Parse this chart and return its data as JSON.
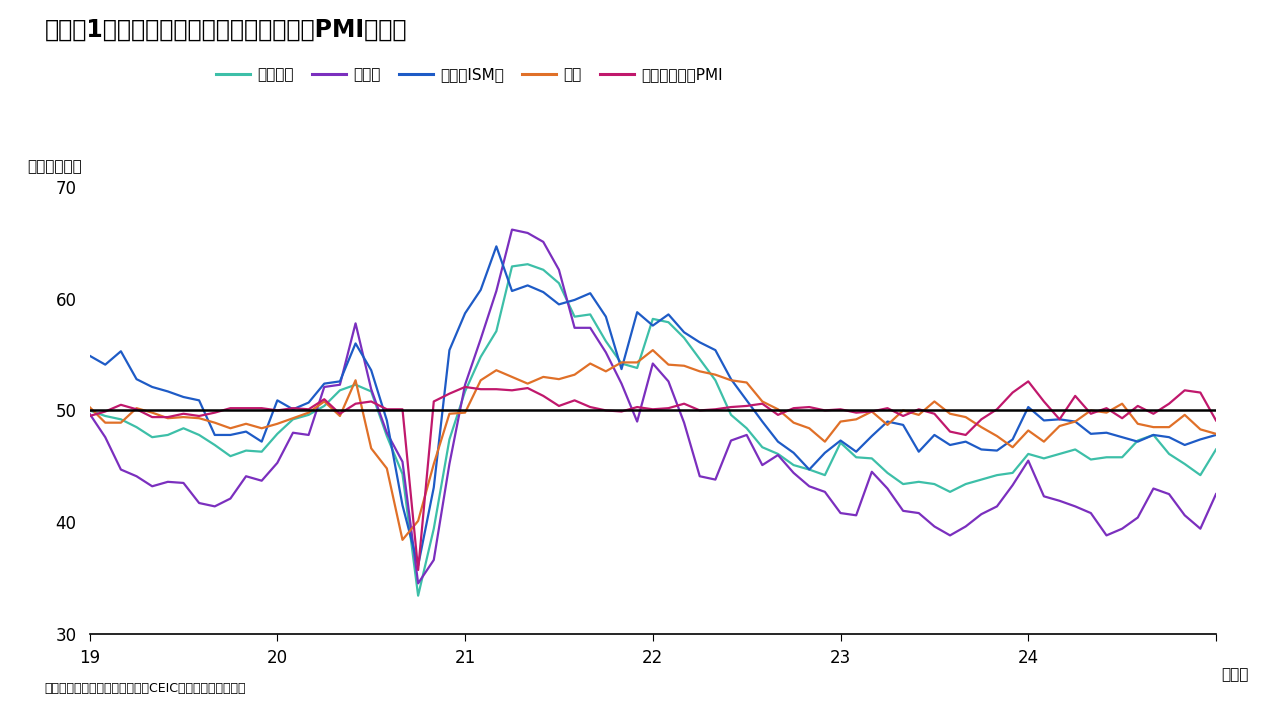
{
  "title": "（図表1）　主要国・地域における製造業PMIの推移",
  "ylabel": "（ポイント）",
  "xlabel_unit": "（年）",
  "source": "（出所）ブルームバーグおよびCEICよりインベスコ作成",
  "ylim": [
    30,
    70
  ],
  "yticks": [
    30,
    40,
    50,
    60,
    70
  ],
  "background_color": "#ffffff",
  "reference_line": 50,
  "series": {
    "euro": {
      "label": "ユーロ圏",
      "color": "#3dbfa8",
      "linewidth": 1.6,
      "values": [
        50.0,
        49.5,
        49.2,
        48.5,
        47.6,
        47.8,
        48.4,
        47.8,
        46.9,
        45.9,
        46.4,
        46.3,
        47.9,
        49.2,
        49.6,
        50.4,
        51.8,
        52.3,
        51.7,
        47.7,
        44.3,
        33.4,
        39.4,
        47.4,
        51.7,
        54.8,
        57.1,
        62.9,
        63.1,
        62.6,
        61.4,
        58.4,
        58.6,
        56.2,
        54.2,
        53.8,
        58.2,
        57.9,
        56.5,
        54.6,
        52.7,
        49.6,
        48.4,
        46.7,
        46.1,
        45.1,
        44.7,
        44.2,
        47.1,
        45.8,
        45.7,
        44.4,
        43.4,
        43.6,
        43.4,
        42.7,
        43.4,
        43.8,
        44.2,
        44.4,
        46.1,
        45.7,
        46.1,
        46.5,
        45.6,
        45.8,
        45.8,
        47.3,
        47.8,
        46.1,
        45.2,
        44.2,
        46.5
      ]
    },
    "germany": {
      "label": "ドイツ",
      "color": "#7b2fbe",
      "linewidth": 1.6,
      "values": [
        49.7,
        47.6,
        44.7,
        44.1,
        43.2,
        43.6,
        43.5,
        41.7,
        41.4,
        42.1,
        44.1,
        43.7,
        45.3,
        48.0,
        47.8,
        52.1,
        52.3,
        57.8,
        51.9,
        48.0,
        45.4,
        34.5,
        36.6,
        45.2,
        52.3,
        56.4,
        60.7,
        66.2,
        65.9,
        65.1,
        62.6,
        57.4,
        57.4,
        55.2,
        52.4,
        49.0,
        54.2,
        52.6,
        48.9,
        44.1,
        43.8,
        47.3,
        47.8,
        45.1,
        46.0,
        44.4,
        43.2,
        42.7,
        40.8,
        40.6,
        44.5,
        43.0,
        41.0,
        40.8,
        39.6,
        38.8,
        39.6,
        40.7,
        41.4,
        43.3,
        45.5,
        42.3,
        41.9,
        41.4,
        40.8,
        38.8,
        39.4,
        40.4,
        43.0,
        42.5,
        40.6,
        39.4,
        42.5
      ]
    },
    "usa": {
      "label": "米国（ISM）",
      "color": "#1e5bc6",
      "linewidth": 1.6,
      "values": [
        54.9,
        54.1,
        55.3,
        52.8,
        52.1,
        51.7,
        51.2,
        50.9,
        47.8,
        47.8,
        48.1,
        47.2,
        50.9,
        50.1,
        50.7,
        52.4,
        52.6,
        56.0,
        53.6,
        49.1,
        41.5,
        36.1,
        43.1,
        55.4,
        58.7,
        60.8,
        64.7,
        60.7,
        61.2,
        60.6,
        59.5,
        59.9,
        60.5,
        58.4,
        53.7,
        58.8,
        57.6,
        58.6,
        57.0,
        56.1,
        55.4,
        52.8,
        50.9,
        49.0,
        47.2,
        46.2,
        44.7,
        46.2,
        47.3,
        46.3,
        47.7,
        49.0,
        48.7,
        46.3,
        47.8,
        46.9,
        47.2,
        46.5,
        46.4,
        47.4,
        50.3,
        49.1,
        49.2,
        49.0,
        47.9,
        48.0,
        47.6,
        47.2,
        47.8,
        47.6,
        46.9,
        47.4,
        47.8
      ]
    },
    "japan": {
      "label": "日本",
      "color": "#e07028",
      "linewidth": 1.6,
      "values": [
        50.3,
        48.9,
        48.9,
        50.2,
        49.8,
        49.3,
        49.4,
        49.3,
        48.9,
        48.4,
        48.8,
        48.4,
        48.8,
        49.3,
        49.8,
        50.8,
        49.5,
        52.7,
        46.6,
        44.8,
        38.4,
        40.1,
        45.2,
        49.7,
        49.8,
        52.7,
        53.6,
        53.0,
        52.4,
        53.0,
        52.8,
        53.2,
        54.2,
        53.5,
        54.3,
        54.3,
        55.4,
        54.1,
        54.0,
        53.5,
        53.2,
        52.7,
        52.5,
        50.8,
        50.1,
        48.9,
        48.4,
        47.2,
        49.0,
        49.2,
        49.9,
        48.7,
        50.0,
        49.6,
        50.8,
        49.7,
        49.4,
        48.5,
        47.7,
        46.7,
        48.2,
        47.2,
        48.6,
        49.0,
        50.0,
        49.8,
        50.6,
        48.8,
        48.5,
        48.5,
        49.6,
        48.3,
        47.9
      ]
    },
    "china": {
      "label": "中国－政府版PMI",
      "color": "#c0186c",
      "linewidth": 1.6,
      "values": [
        49.5,
        49.9,
        50.5,
        50.1,
        49.4,
        49.4,
        49.7,
        49.5,
        49.8,
        50.2,
        50.2,
        50.2,
        50.0,
        50.2,
        50.1,
        51.0,
        49.7,
        50.6,
        50.8,
        50.1,
        50.1,
        35.7,
        50.8,
        51.5,
        52.1,
        51.9,
        51.9,
        51.8,
        52.0,
        51.3,
        50.4,
        50.9,
        50.3,
        50.0,
        49.9,
        50.3,
        50.1,
        50.2,
        50.6,
        50.0,
        50.1,
        50.3,
        50.4,
        50.6,
        49.6,
        50.2,
        50.3,
        50.0,
        50.1,
        49.8,
        49.9,
        50.2,
        49.5,
        50.1,
        49.7,
        48.1,
        47.8,
        49.2,
        50.1,
        51.6,
        52.6,
        50.8,
        49.2,
        51.3,
        49.7,
        50.2,
        49.3,
        50.4,
        49.7,
        50.6,
        51.8,
        51.6,
        49.1
      ]
    }
  },
  "xtick_positions": [
    0,
    12,
    24,
    36,
    48,
    60,
    72
  ],
  "xtick_labels": [
    "19",
    "20",
    "21",
    "22",
    "23",
    "24",
    ""
  ],
  "title_fontsize": 17,
  "axis_fontsize": 11,
  "legend_fontsize": 11,
  "tick_fontsize": 12,
  "source_fontsize": 9
}
